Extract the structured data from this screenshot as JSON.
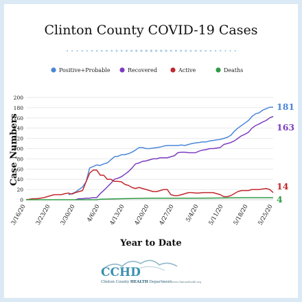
{
  "chart_data": {
    "type": "line",
    "title": "Clinton County COVID-19 Cases",
    "xlabel": "Year to Date",
    "ylabel": "Case Numbers",
    "ylim": [
      0,
      200
    ],
    "yticks": [
      "0",
      "20",
      "40",
      "60",
      "80",
      "100",
      "120",
      "140",
      "160",
      "180",
      "200"
    ],
    "xticks": [
      {
        "label": "3/16/20",
        "day": 0
      },
      {
        "label": "3/23/20",
        "day": 7
      },
      {
        "label": "3/30/20",
        "day": 14
      },
      {
        "label": "4/6/20",
        "day": 21
      },
      {
        "label": "4/13/20",
        "day": 28
      },
      {
        "label": "4/20/20",
        "day": 35
      },
      {
        "label": "4/27/20",
        "day": 42
      },
      {
        "label": "5/4/20",
        "day": 49
      },
      {
        "label": "5/11/20",
        "day": 56
      },
      {
        "label": "5/18/20",
        "day": 63
      },
      {
        "label": "5/25/20",
        "day": 70
      }
    ],
    "legend_position": "top",
    "series": [
      {
        "name": "Positive+Probable",
        "color": "#4a86d8",
        "end_label": "181",
        "points": [
          [
            12,
            10
          ],
          [
            13,
            12
          ],
          [
            14,
            15
          ],
          [
            15,
            20
          ],
          [
            16,
            25
          ],
          [
            17,
            35
          ],
          [
            18,
            62
          ],
          [
            19,
            65
          ],
          [
            20,
            68
          ],
          [
            21,
            67
          ],
          [
            22,
            70
          ],
          [
            23,
            72
          ],
          [
            24,
            78
          ],
          [
            25,
            84
          ],
          [
            26,
            85
          ],
          [
            27,
            88
          ],
          [
            28,
            88
          ],
          [
            29,
            90
          ],
          [
            30,
            93
          ],
          [
            31,
            97
          ],
          [
            32,
            102
          ],
          [
            33,
            102
          ],
          [
            34,
            100
          ],
          [
            35,
            100
          ],
          [
            36,
            101
          ],
          [
            37,
            102
          ],
          [
            38,
            103
          ],
          [
            39,
            105
          ],
          [
            40,
            106
          ],
          [
            41,
            106
          ],
          [
            42,
            106
          ],
          [
            43,
            106
          ],
          [
            44,
            107
          ],
          [
            45,
            106
          ],
          [
            46,
            108
          ],
          [
            47,
            110
          ],
          [
            48,
            111
          ],
          [
            49,
            112
          ],
          [
            50,
            113
          ],
          [
            51,
            113
          ],
          [
            52,
            115
          ],
          [
            53,
            116
          ],
          [
            54,
            117
          ],
          [
            55,
            118
          ],
          [
            56,
            120
          ],
          [
            57,
            122
          ],
          [
            58,
            126
          ],
          [
            59,
            134
          ],
          [
            60,
            140
          ],
          [
            61,
            145
          ],
          [
            62,
            150
          ],
          [
            63,
            155
          ],
          [
            64,
            163
          ],
          [
            65,
            168
          ],
          [
            66,
            170
          ],
          [
            67,
            175
          ],
          [
            68,
            178
          ],
          [
            69,
            181
          ],
          [
            70,
            181
          ]
        ]
      },
      {
        "name": "Recovered",
        "color": "#7a3cc0",
        "end_label": "163",
        "points": [
          [
            14,
            0
          ],
          [
            15,
            2
          ],
          [
            16,
            2
          ],
          [
            17,
            3
          ],
          [
            18,
            3
          ],
          [
            19,
            4
          ],
          [
            20,
            4
          ],
          [
            21,
            12
          ],
          [
            22,
            18
          ],
          [
            23,
            25
          ],
          [
            24,
            32
          ],
          [
            25,
            40
          ],
          [
            26,
            42
          ],
          [
            27,
            45
          ],
          [
            28,
            50
          ],
          [
            29,
            55
          ],
          [
            30,
            62
          ],
          [
            31,
            70
          ],
          [
            32,
            72
          ],
          [
            33,
            75
          ],
          [
            34,
            76
          ],
          [
            35,
            78
          ],
          [
            36,
            80
          ],
          [
            37,
            80
          ],
          [
            38,
            82
          ],
          [
            39,
            82
          ],
          [
            40,
            82
          ],
          [
            41,
            84
          ],
          [
            42,
            86
          ],
          [
            43,
            92
          ],
          [
            44,
            93
          ],
          [
            45,
            93
          ],
          [
            46,
            92
          ],
          [
            47,
            92
          ],
          [
            48,
            92
          ],
          [
            49,
            95
          ],
          [
            50,
            97
          ],
          [
            51,
            98
          ],
          [
            52,
            100
          ],
          [
            53,
            100
          ],
          [
            54,
            101
          ],
          [
            55,
            102
          ],
          [
            56,
            108
          ],
          [
            57,
            110
          ],
          [
            58,
            112
          ],
          [
            59,
            115
          ],
          [
            60,
            120
          ],
          [
            61,
            125
          ],
          [
            62,
            128
          ],
          [
            63,
            132
          ],
          [
            64,
            140
          ],
          [
            65,
            145
          ],
          [
            66,
            148
          ],
          [
            67,
            152
          ],
          [
            68,
            155
          ],
          [
            69,
            160
          ],
          [
            70,
            163
          ]
        ]
      },
      {
        "name": "Active",
        "color": "#c0282d",
        "end_label": "14",
        "points": [
          [
            0,
            0
          ],
          [
            1,
            1
          ],
          [
            2,
            2
          ],
          [
            3,
            2
          ],
          [
            4,
            3
          ],
          [
            5,
            4
          ],
          [
            6,
            6
          ],
          [
            7,
            8
          ],
          [
            8,
            10
          ],
          [
            9,
            10
          ],
          [
            10,
            10
          ],
          [
            11,
            12
          ],
          [
            12,
            13
          ],
          [
            13,
            11
          ],
          [
            14,
            14
          ],
          [
            15,
            16
          ],
          [
            16,
            18
          ],
          [
            17,
            35
          ],
          [
            18,
            52
          ],
          [
            19,
            58
          ],
          [
            20,
            58
          ],
          [
            21,
            48
          ],
          [
            22,
            48
          ],
          [
            23,
            40
          ],
          [
            24,
            40
          ],
          [
            25,
            36
          ],
          [
            26,
            36
          ],
          [
            27,
            35
          ],
          [
            28,
            30
          ],
          [
            29,
            28
          ],
          [
            30,
            24
          ],
          [
            31,
            22
          ],
          [
            32,
            24
          ],
          [
            33,
            22
          ],
          [
            34,
            20
          ],
          [
            35,
            18
          ],
          [
            36,
            16
          ],
          [
            37,
            16
          ],
          [
            38,
            18
          ],
          [
            39,
            20
          ],
          [
            40,
            20
          ],
          [
            41,
            10
          ],
          [
            42,
            8
          ],
          [
            43,
            8
          ],
          [
            44,
            10
          ],
          [
            45,
            12
          ],
          [
            46,
            14
          ],
          [
            47,
            14
          ],
          [
            48,
            13
          ],
          [
            49,
            13
          ],
          [
            50,
            14
          ],
          [
            51,
            14
          ],
          [
            52,
            14
          ],
          [
            53,
            14
          ],
          [
            54,
            12
          ],
          [
            55,
            10
          ],
          [
            56,
            6
          ],
          [
            57,
            6
          ],
          [
            58,
            8
          ],
          [
            59,
            12
          ],
          [
            60,
            16
          ],
          [
            61,
            18
          ],
          [
            62,
            18
          ],
          [
            63,
            18
          ],
          [
            64,
            20
          ],
          [
            65,
            20
          ],
          [
            66,
            20
          ],
          [
            67,
            21
          ],
          [
            68,
            22
          ],
          [
            69,
            20
          ],
          [
            70,
            14
          ]
        ]
      },
      {
        "name": "Deaths",
        "color": "#2e9b45",
        "end_label": "4",
        "points": [
          [
            0,
            0
          ],
          [
            20,
            0
          ],
          [
            21,
            1
          ],
          [
            27,
            2
          ],
          [
            35,
            3
          ],
          [
            50,
            3
          ],
          [
            62,
            4
          ],
          [
            70,
            4
          ]
        ]
      }
    ]
  },
  "logo": {
    "mark": "CCHD",
    "line_prefix": "Clinton County ",
    "line_emph": "HEALTH",
    "line_suffix": " Department",
    "url": "www.ClintonHealth.org"
  }
}
